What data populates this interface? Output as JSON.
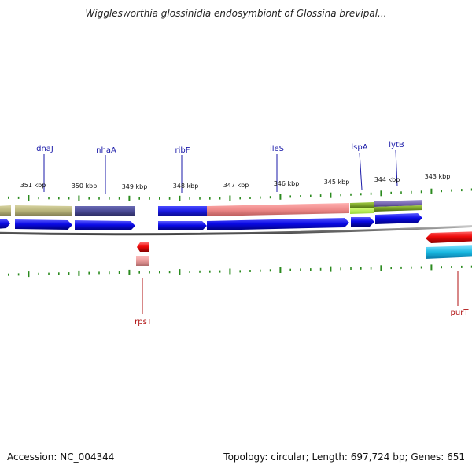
{
  "title": "Wigglesworthia glossinidia endosymbiont of Glossina brevipal...",
  "footer": {
    "accession": "Accession: NC_004344",
    "stats": "Topology: circular; Length: 697,724 bp; Genes: 651"
  },
  "kbp_labels": [
    {
      "kbp": 351,
      "text": "351 kbp"
    },
    {
      "kbp": 350,
      "text": "350 kbp"
    },
    {
      "kbp": 349,
      "text": "349 kbp"
    },
    {
      "kbp": 348,
      "text": "348 kbp"
    },
    {
      "kbp": 347,
      "text": "347 kbp"
    },
    {
      "kbp": 346,
      "text": "346 kbp"
    },
    {
      "kbp": 345,
      "text": "345 kbp"
    },
    {
      "kbp": 344,
      "text": "344 kbp"
    },
    {
      "kbp": 343,
      "text": "343 kbp"
    }
  ],
  "gene_labels": [
    {
      "name": "dnaJ",
      "strand": "forward"
    },
    {
      "name": "nhaA",
      "strand": "forward"
    },
    {
      "name": "ribF",
      "strand": "forward"
    },
    {
      "name": "ileS",
      "strand": "forward"
    },
    {
      "name": "lspA",
      "strand": "forward"
    },
    {
      "name": "lytB",
      "strand": "forward"
    },
    {
      "name": "rpsT",
      "strand": "reverse"
    },
    {
      "name": "purT",
      "strand": "reverse"
    }
  ],
  "colors": {
    "forward_label": "#1a1aa8",
    "reverse_label": "#b01010",
    "forward_arrow": "#0a0ae6",
    "reverse_arrow": "#ee0a0a",
    "tick": "#2a8a1e",
    "backbone": "#777777",
    "cog_olive": "#b8b47a",
    "cog_slate": "#4a4a94",
    "cog_blue": "#1a1ae0",
    "cog_salmon": "#ee8a8a",
    "cog_green": "#7aa02a",
    "cog_purple": "#7a6ab4",
    "cog_pink": "#e89a9a",
    "cog_cyan": "#18b8e0"
  }
}
